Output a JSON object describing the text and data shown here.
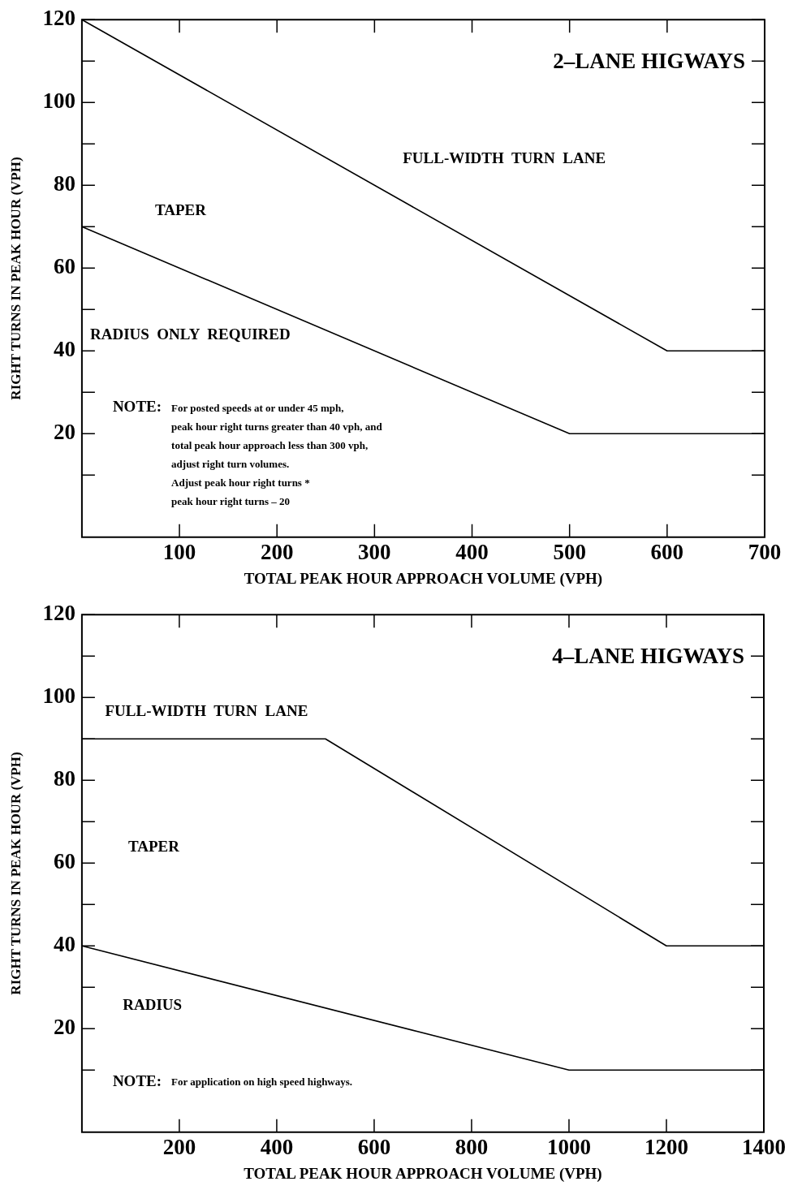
{
  "chart_data": [
    {
      "type": "line",
      "title": "2–LANE HIGWAYS",
      "xlabel": "TOTAL PEAK HOUR APPROACH VOLUME (VPH)",
      "ylabel": "RIGHT TURNS IN PEAK HOUR (VPH)",
      "xlim": [
        0,
        700
      ],
      "ylim": [
        -5,
        120
      ],
      "xticks": [
        100,
        200,
        300,
        400,
        500,
        600,
        700
      ],
      "yticks": [
        {
          "value": 10,
          "label": null
        },
        20,
        {
          "value": 30,
          "label": null
        },
        40,
        {
          "value": 50,
          "label": null
        },
        60,
        {
          "value": 70,
          "label": null
        },
        80,
        {
          "value": 90,
          "label": null
        },
        100,
        {
          "value": 110,
          "label": null
        },
        120
      ],
      "marker": "none",
      "series": [
        {
          "color": "#000000",
          "x": [
            0,
            600,
            700
          ],
          "values": [
            120,
            40,
            40
          ]
        },
        {
          "color": "#000000",
          "x": [
            0,
            500,
            700
          ],
          "values": [
            70,
            20,
            20
          ]
        }
      ],
      "annotations": [
        "FULL-WIDTH  TURN  LANE",
        "TAPER",
        "RADIUS  ONLY  REQUIRED",
        "NOTE: For posted speeds at or under 45 mph,\npeak hour right turns greater than 40 vph, and\ntotal peak hour approach less than 300 vph,\nadjust right turn volumes.\nAdjust peak hour right turns *\npeak hour right turns – 20"
      ]
    },
    {
      "type": "line",
      "title": "4–LANE HIGWAYS",
      "xlabel": "TOTAL PEAK HOUR APPROACH VOLUME (VPH)",
      "ylabel": "RIGHT TURNS IN PEAK HOUR (VPH)",
      "xlim": [
        0,
        1400
      ],
      "ylim": [
        -5,
        120
      ],
      "xticks": [
        200,
        400,
        600,
        800,
        1000,
        1200,
        1400
      ],
      "yticks": [
        {
          "value": 10,
          "label": null
        },
        20,
        {
          "value": 30,
          "label": null
        },
        40,
        {
          "value": 50,
          "label": null
        },
        60,
        {
          "value": 70,
          "label": null
        },
        80,
        {
          "value": 90,
          "label": null
        },
        100,
        {
          "value": 110,
          "label": null
        },
        120
      ],
      "marker": "none",
      "series": [
        {
          "color": "#000000",
          "x": [
            0,
            500,
            1200,
            1400
          ],
          "values": [
            90,
            90,
            40,
            40
          ]
        },
        {
          "color": "#000000",
          "x": [
            0,
            1000,
            1400
          ],
          "values": [
            40,
            10,
            10
          ]
        }
      ],
      "annotations": [
        "FULL-WIDTH  TURN  LANE",
        "TAPER",
        "RADIUS",
        "NOTE: For application on high speed highways."
      ]
    }
  ]
}
